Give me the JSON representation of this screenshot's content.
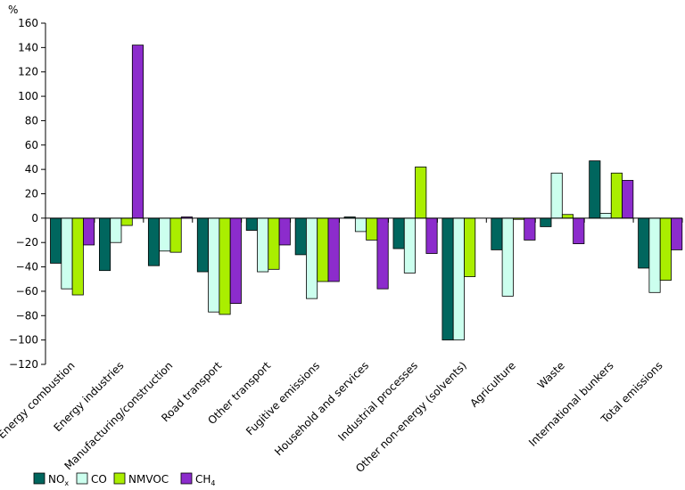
{
  "chart_data": {
    "type": "bar",
    "title": "",
    "xlabel": "",
    "ylabel": "%",
    "ylim": [
      -120,
      160
    ],
    "yticks": [
      -120,
      -100,
      -80,
      -60,
      -40,
      -20,
      0,
      20,
      40,
      60,
      80,
      100,
      120,
      140,
      160
    ],
    "grid": false,
    "legend_position": "bottom-left",
    "categories": [
      "Energy combustion",
      "Energy industries",
      "Manufacturing/construction",
      "Road transport",
      "Other transport",
      "Fugitive emissions",
      "Household and services",
      "Industrial processes",
      "Other non-energy (solvents)",
      "Agriculture",
      "Waste",
      "International bunkers",
      "Total emissions"
    ],
    "series": [
      {
        "name": "NO",
        "sub": "x",
        "color": "#00665e",
        "values": [
          -37,
          -43,
          -39,
          -44,
          -10,
          -30,
          1,
          -25,
          -100,
          -26,
          -7,
          47,
          -41
        ]
      },
      {
        "name": "CO",
        "sub": "",
        "color": "#ccffee",
        "values": [
          -58,
          -20,
          -27,
          -77,
          -44,
          -66,
          -11,
          -45,
          -100,
          -64,
          37,
          4,
          -61
        ]
      },
      {
        "name": "NMVOC",
        "sub": "",
        "color": "#aaee00",
        "values": [
          -63,
          -6,
          -28,
          -79,
          -42,
          -52,
          -18,
          42,
          -48,
          -1,
          3,
          37,
          -51
        ]
      },
      {
        "name": "CH",
        "sub": "4",
        "color": "#8c2ccc",
        "values": [
          -22,
          142,
          1,
          -70,
          -22,
          -52,
          -58,
          -29,
          0,
          -18,
          -21,
          31,
          -26
        ]
      }
    ]
  }
}
